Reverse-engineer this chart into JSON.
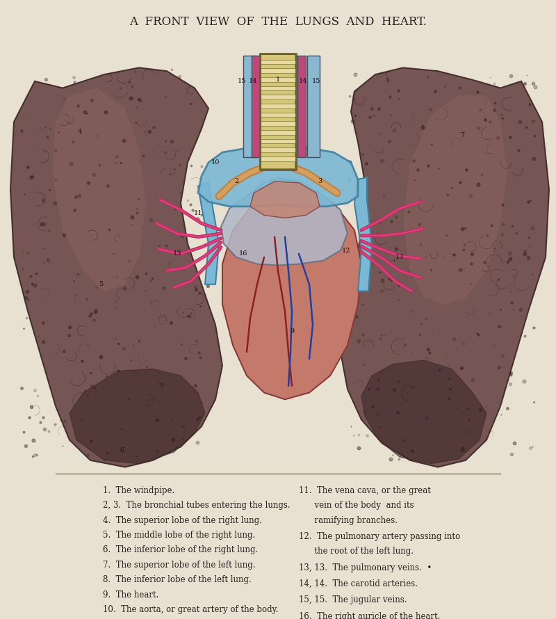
{
  "title": "A  FRONT  VIEW  OF  THE  LUNGS  AND  HEART.",
  "background_color": "#e8e0d0",
  "title_fontsize": 12,
  "title_color": "#2a2020",
  "lung_color_dark": "#6b4a4a",
  "lung_color_mid": "#8a6060",
  "lung_color_light": "#b08080",
  "lung_shadow": "#3d2828",
  "heart_color": "#c47a6a",
  "heart_dark": "#8b3a3a",
  "aorta_color": "#7ab8d4",
  "trachea_color_light": "#d4c47a",
  "trachea_color_dark": "#a09040",
  "artery_color": "#c04070",
  "vein_color": "#4060a0",
  "label_color": "#2a2020",
  "label_fontsize": 8.5,
  "left_labels": [
    "1.  The windpipe.",
    "2, 3.  The bronchial tubes entering the lungs.",
    "4.  The superior lobe of the right lung.",
    "5.  The middle lobe of the right lung.",
    "6.  The inferior lobe of the right lung.",
    "7.  The superior lobe of the left lung.",
    "8.  The inferior lobe of the left lung.",
    "9.  The heart.",
    "10.  The aorta, or great artery of the body."
  ],
  "right_labels_raw": [
    [
      "11.  The vena cava, or the great",
      "      vein of the body  and its",
      "      ramifying branches."
    ],
    [
      "12.  The pulmonary artery passing into",
      "      the root of the left lung."
    ],
    [
      "13, 13.  The pulmonary veins.  •"
    ],
    [
      "14, 14.  The carotid arteries."
    ],
    [
      "15, 15.  The jugular veins."
    ],
    [
      "16.  The right auricle of the heart."
    ]
  ]
}
